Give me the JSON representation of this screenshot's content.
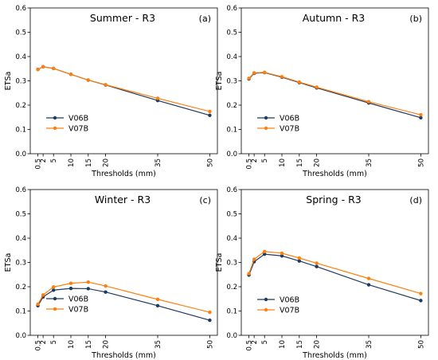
{
  "chart_data": [
    {
      "type": "line",
      "title": "Summer - R3",
      "panel_label": "(a)",
      "xlabel": "Thresholds (mm)",
      "ylabel": "ETSa",
      "x": [
        0.5,
        2,
        5,
        10,
        15,
        20,
        35,
        50
      ],
      "xtick_labels": [
        "0.5",
        "2",
        "5",
        "10",
        "15",
        "20",
        "35",
        "50"
      ],
      "ylim": [
        0,
        0.6
      ],
      "yticks": [
        "0.0",
        "0.1",
        "0.2",
        "0.3",
        "0.4",
        "0.5",
        "0.6"
      ],
      "legend_position": "lower-left",
      "series": [
        {
          "name": "V06B",
          "color": "#1f3a5f",
          "values": [
            0.347,
            0.358,
            0.351,
            0.327,
            0.303,
            0.283,
            0.219,
            0.158
          ]
        },
        {
          "name": "V07B",
          "color": "#ff7f0e",
          "values": [
            0.347,
            0.358,
            0.351,
            0.327,
            0.303,
            0.284,
            0.228,
            0.174
          ]
        }
      ]
    },
    {
      "type": "line",
      "title": "Autumn - R3",
      "panel_label": "(b)",
      "xlabel": "Thresholds (mm)",
      "ylabel": "ETSa",
      "x": [
        0.5,
        2,
        5,
        10,
        15,
        20,
        35,
        50
      ],
      "xtick_labels": [
        "0.5",
        "2",
        "5",
        "10",
        "15",
        "20",
        "35",
        "50"
      ],
      "ylim": [
        0,
        0.6
      ],
      "yticks": [
        "0.0",
        "0.1",
        "0.2",
        "0.3",
        "0.4",
        "0.5",
        "0.6"
      ],
      "legend_position": "lower-left",
      "series": [
        {
          "name": "V06B",
          "color": "#1f3a5f",
          "values": [
            0.308,
            0.331,
            0.334,
            0.315,
            0.293,
            0.271,
            0.209,
            0.148
          ]
        },
        {
          "name": "V07B",
          "color": "#ff7f0e",
          "values": [
            0.31,
            0.333,
            0.335,
            0.317,
            0.295,
            0.274,
            0.214,
            0.16
          ]
        }
      ]
    },
    {
      "type": "line",
      "title": "Winter - R3",
      "panel_label": "(c)",
      "xlabel": "Thresholds (mm)",
      "ylabel": "ETSa",
      "x": [
        0.5,
        2,
        5,
        10,
        15,
        20,
        35,
        50
      ],
      "xtick_labels": [
        "0.5",
        "2",
        "5",
        "10",
        "15",
        "20",
        "35",
        "50"
      ],
      "ylim": [
        0,
        0.6
      ],
      "yticks": [
        "0.0",
        "0.1",
        "0.2",
        "0.3",
        "0.4",
        "0.5",
        "0.6"
      ],
      "legend_position": "center-left",
      "series": [
        {
          "name": "V06B",
          "color": "#1f3a5f",
          "values": [
            0.122,
            0.158,
            0.186,
            0.193,
            0.192,
            0.178,
            0.122,
            0.062
          ]
        },
        {
          "name": "V07B",
          "color": "#ff7f0e",
          "values": [
            0.128,
            0.166,
            0.199,
            0.214,
            0.219,
            0.203,
            0.148,
            0.095
          ]
        }
      ]
    },
    {
      "type": "line",
      "title": "Spring - R3",
      "panel_label": "(d)",
      "xlabel": "Thresholds (mm)",
      "ylabel": "ETSa",
      "x": [
        0.5,
        2,
        5,
        10,
        15,
        20,
        35,
        50
      ],
      "xtick_labels": [
        "0.5",
        "2",
        "5",
        "10",
        "15",
        "20",
        "35",
        "50"
      ],
      "ylim": [
        0,
        0.6
      ],
      "yticks": [
        "0.0",
        "0.1",
        "0.2",
        "0.3",
        "0.4",
        "0.5",
        "0.6"
      ],
      "legend_position": "lower-left",
      "series": [
        {
          "name": "V06B",
          "color": "#1f3a5f",
          "values": [
            0.248,
            0.303,
            0.334,
            0.327,
            0.306,
            0.283,
            0.208,
            0.143
          ]
        },
        {
          "name": "V07B",
          "color": "#ff7f0e",
          "values": [
            0.254,
            0.313,
            0.345,
            0.338,
            0.318,
            0.297,
            0.234,
            0.172
          ]
        }
      ]
    }
  ]
}
